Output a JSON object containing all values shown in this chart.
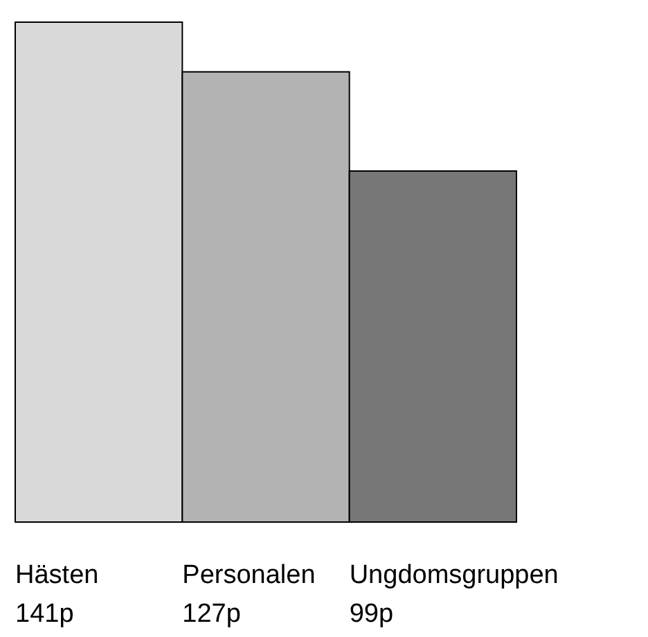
{
  "chart_data": {
    "type": "bar",
    "categories": [
      "Hästen",
      "Personalen",
      "Ungdomsgruppen"
    ],
    "values": [
      141,
      127,
      99
    ],
    "colors": [
      "#d9d9d9",
      "#b3b3b3",
      "#777777"
    ],
    "value_labels": [
      "141p",
      "127p",
      "99p"
    ]
  }
}
